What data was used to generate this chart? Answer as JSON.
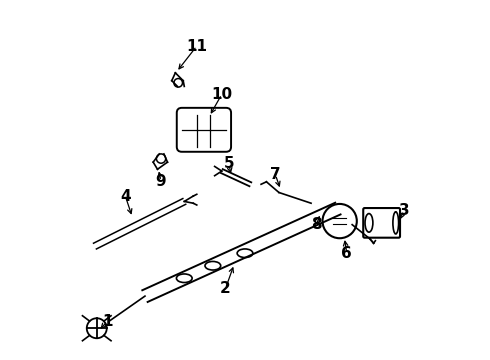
{
  "background_color": "#ffffff",
  "line_color": "#000000",
  "fig_width": 4.9,
  "fig_height": 3.6,
  "dpi": 100,
  "label_fontsize": 11,
  "label_fontweight": "bold"
}
